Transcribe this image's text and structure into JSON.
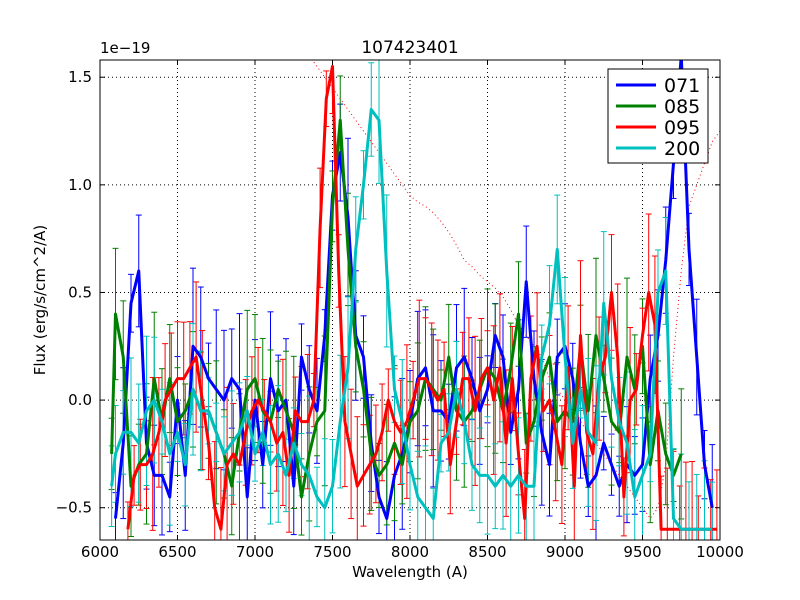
{
  "chart_data": {
    "type": "line",
    "title": "107423401",
    "xlabel": "Wavelength (A)",
    "ylabel": "Flux (erg/s/cm^2/A)",
    "offset_label": "1e−19",
    "xlim": [
      6000,
      10000
    ],
    "ylim": [
      -0.65,
      1.58
    ],
    "xticks": [
      6000,
      6500,
      7000,
      7500,
      8000,
      8500,
      9000,
      9500,
      10000
    ],
    "xtick_labels": [
      "6000",
      "6500",
      "7000",
      "7500",
      "8000",
      "8500",
      "9000",
      "9500",
      "10000"
    ],
    "yticks": [
      -0.5,
      0.0,
      0.5,
      1.0,
      1.5
    ],
    "ytick_labels": [
      "−0.5",
      "0.0",
      "0.5",
      "1.0",
      "1.5"
    ],
    "grid": true,
    "legend_position": "top-right",
    "series": [
      {
        "name": "071",
        "color": "#0000ff",
        "x": [
          6100,
          6150,
          6200,
          6250,
          6300,
          6350,
          6400,
          6450,
          6500,
          6550,
          6600,
          6650,
          6700,
          6750,
          6800,
          6850,
          6900,
          6950,
          7000,
          7050,
          7100,
          7150,
          7200,
          7250,
          7300,
          7350,
          7400,
          7450,
          7500,
          7550,
          7600,
          7650,
          7700,
          7750,
          7800,
          7850,
          7900,
          7950,
          8000,
          8050,
          8100,
          8150,
          8200,
          8250,
          8300,
          8350,
          8400,
          8450,
          8500,
          8550,
          8600,
          8650,
          8700,
          8750,
          8800,
          8850,
          8900,
          8950,
          9000,
          9050,
          9100,
          9150,
          9200,
          9250,
          9300,
          9350,
          9400,
          9450,
          9500,
          9550,
          9600,
          9650,
          9700,
          9750,
          9800,
          9850,
          9900,
          9950
        ],
        "y": [
          -0.55,
          -0.2,
          0.45,
          0.6,
          -0.2,
          -0.35,
          -0.35,
          -0.45,
          0.0,
          -0.35,
          0.25,
          0.2,
          0.1,
          0.05,
          0.0,
          0.1,
          0.05,
          -0.45,
          0.0,
          -0.3,
          0.1,
          -0.05,
          0.0,
          -0.4,
          0.2,
          0.05,
          -0.05,
          0.3,
          0.95,
          1.15,
          0.85,
          0.3,
          0.2,
          -0.2,
          -0.45,
          -0.55,
          -0.35,
          -0.25,
          -0.1,
          0.1,
          0.15,
          -0.05,
          -0.05,
          -0.1,
          0.15,
          0.2,
          0.1,
          -0.05,
          0.05,
          0.3,
          0.2,
          -0.15,
          0.05,
          0.55,
          0.1,
          -0.15,
          -0.3,
          0.2,
          0.25,
          0.1,
          -0.2,
          -0.4,
          -0.35,
          -0.2,
          -0.3,
          -0.4,
          -0.3,
          -0.35,
          -0.3,
          0.1,
          0.3,
          0.65,
          1.1,
          1.6,
          0.7,
          0.2,
          -0.3,
          -0.5
        ]
      },
      {
        "name": "085",
        "color": "#008000",
        "x": [
          6075,
          6100,
          6150,
          6200,
          6250,
          6300,
          6350,
          6400,
          6450,
          6500,
          6550,
          6600,
          6650,
          6700,
          6750,
          6800,
          6850,
          6900,
          6950,
          7000,
          7050,
          7100,
          7150,
          7200,
          7250,
          7300,
          7350,
          7400,
          7450,
          7500,
          7550,
          7600,
          7650,
          7700,
          7750,
          7800,
          7850,
          7900,
          7950,
          8000,
          8050,
          8100,
          8150,
          8200,
          8250,
          8300,
          8350,
          8400,
          8450,
          8500,
          8550,
          8600,
          8650,
          8700,
          8750,
          8800,
          8850,
          8900,
          8950,
          9000,
          9050,
          9100,
          9150,
          9200,
          9250,
          9300,
          9350,
          9400,
          9450,
          9500,
          9550,
          9600,
          9650,
          9700,
          9750
        ],
        "y": [
          -0.25,
          0.4,
          0.2,
          -0.4,
          -0.3,
          -0.25,
          0.1,
          -0.1,
          0.1,
          -0.1,
          -0.05,
          0.05,
          -0.05,
          -0.05,
          -0.15,
          -0.25,
          -0.4,
          -0.15,
          0.05,
          0.1,
          -0.05,
          -0.1,
          0.05,
          -0.05,
          -0.15,
          -0.45,
          -0.25,
          -0.1,
          -0.05,
          0.9,
          1.3,
          0.7,
          0.25,
          0.05,
          -0.25,
          -0.35,
          -0.3,
          -0.2,
          -0.3,
          -0.1,
          -0.05,
          0.1,
          0.05,
          0.0,
          0.2,
          -0.05,
          -0.1,
          -0.05,
          0.05,
          0.15,
          0.1,
          -0.05,
          0.15,
          0.4,
          -0.2,
          -0.1,
          0.1,
          0.2,
          -0.1,
          -0.05,
          -0.1,
          0.25,
          -0.05,
          0.3,
          0.1,
          -0.1,
          -0.15,
          0.2,
          0.05,
          0.25,
          -0.3,
          -0.05,
          -0.25,
          -0.35,
          -0.25
        ]
      },
      {
        "name": "095",
        "color": "#ff0000",
        "x": [
          6180,
          6220,
          6260,
          6300,
          6340,
          6380,
          6420,
          6460,
          6500,
          6540,
          6580,
          6620,
          6660,
          6700,
          6740,
          6780,
          6820,
          6860,
          6900,
          6940,
          6980,
          7020,
          7060,
          7100,
          7140,
          7180,
          7220,
          7260,
          7300,
          7340,
          7380,
          7420,
          7460,
          7500,
          7540,
          7580,
          7620,
          7660,
          7700,
          7740,
          7780,
          7820,
          7860,
          7900,
          7940,
          7980,
          8020,
          8060,
          8100,
          8140,
          8180,
          8220,
          8260,
          8300,
          8340,
          8380,
          8420,
          8460,
          8500,
          8540,
          8580,
          8620,
          8660,
          8700,
          8740,
          8780,
          8820,
          8860,
          8900,
          8940,
          8980,
          9020,
          9060,
          9100,
          9140,
          9180,
          9220,
          9260,
          9300,
          9340,
          9380,
          9420,
          9460,
          9500,
          9540,
          9580,
          9620,
          9660,
          9700,
          9740,
          9780,
          9820,
          9860,
          9900,
          9940,
          9980
        ],
        "y": [
          -0.6,
          -0.35,
          -0.3,
          -0.3,
          -0.25,
          -0.15,
          0.0,
          0.05,
          0.1,
          0.1,
          0.15,
          0.2,
          0.0,
          -0.2,
          -0.5,
          -0.6,
          -0.3,
          -0.25,
          -0.3,
          -0.15,
          -0.05,
          0.0,
          -0.05,
          -0.1,
          -0.2,
          -0.15,
          -0.35,
          -0.05,
          -0.1,
          -0.1,
          0.0,
          0.8,
          1.4,
          1.55,
          0.6,
          -0.1,
          -0.25,
          -0.4,
          -0.35,
          -0.3,
          -0.25,
          -0.15,
          0.0,
          -0.1,
          -0.15,
          -0.1,
          0.0,
          0.1,
          0.1,
          0.05,
          0.0,
          0.05,
          -0.3,
          -0.1,
          0.1,
          0.1,
          -0.05,
          0.1,
          0.15,
          0.0,
          0.15,
          -0.2,
          0.1,
          -0.25,
          -0.55,
          0.1,
          0.25,
          -0.05,
          0.0,
          -0.15,
          -0.3,
          0.15,
          -0.4,
          0.3,
          -0.15,
          -0.25,
          0.1,
          0.2,
          0.5,
          0.2,
          -0.45,
          0.0,
          0.05,
          0.3,
          0.5,
          0.35,
          -0.6,
          -0.6,
          -0.6,
          -0.6,
          -0.6,
          -0.6,
          -0.6,
          -0.6,
          -0.6,
          -0.6
        ],
        "model_x": [
          7350,
          7400,
          7450,
          7500,
          7550,
          7600,
          7650,
          7700,
          7750,
          7800,
          7850,
          7900,
          7950,
          8000,
          8050,
          8100,
          8150,
          8200,
          8250,
          8300,
          8350,
          8400,
          8450,
          8500,
          8550,
          8600,
          8650,
          8700,
          8750,
          8800,
          8850,
          8900,
          8950,
          9000,
          9050,
          9100,
          9150,
          9200,
          9250,
          9300,
          9350,
          9400,
          9450,
          9500,
          9550,
          9600,
          9650,
          9700,
          9750,
          9800,
          9850,
          9900,
          9950,
          10000
        ],
        "model_y": [
          1.6,
          1.55,
          1.5,
          1.45,
          1.4,
          1.35,
          1.3,
          1.25,
          1.2,
          1.15,
          1.1,
          1.05,
          1.0,
          0.95,
          0.92,
          0.9,
          0.87,
          0.83,
          0.78,
          0.72,
          0.65,
          0.62,
          0.58,
          0.55,
          0.52,
          0.48,
          0.42,
          0.35,
          0.3,
          0.25,
          0.2,
          0.1,
          0.05,
          0.0,
          -0.05,
          -0.1,
          -0.15,
          -0.2,
          -0.25,
          -0.3,
          -0.35,
          -0.4,
          -0.45,
          -0.5,
          -0.55,
          -0.5,
          -0.3,
          0.2,
          0.6,
          0.9,
          1.0,
          1.1,
          1.2,
          1.25
        ]
      },
      {
        "name": "200",
        "color": "#00bfbf",
        "x": [
          6075,
          6100,
          6150,
          6200,
          6250,
          6300,
          6350,
          6400,
          6450,
          6500,
          6550,
          6600,
          6650,
          6700,
          6750,
          6800,
          6850,
          6900,
          6950,
          7000,
          7050,
          7100,
          7150,
          7200,
          7250,
          7300,
          7350,
          7400,
          7450,
          7500,
          7550,
          7600,
          7650,
          7700,
          7750,
          7800,
          7850,
          7900,
          7950,
          8000,
          8050,
          8100,
          8150,
          8200,
          8250,
          8300,
          8350,
          8400,
          8450,
          8500,
          8550,
          8600,
          8650,
          8700,
          8750,
          8800,
          8850,
          8900,
          8950,
          9000,
          9050,
          9100,
          9150,
          9200,
          9250,
          9300,
          9350,
          9400,
          9450,
          9500,
          9550,
          9600,
          9650,
          9700,
          9750,
          9800,
          9850,
          9900,
          9950
        ],
        "y": [
          -0.4,
          -0.25,
          -0.15,
          -0.15,
          -0.2,
          -0.05,
          0.0,
          -0.1,
          -0.25,
          -0.15,
          -0.3,
          0.05,
          -0.05,
          -0.05,
          -0.15,
          -0.25,
          -0.2,
          -0.15,
          -0.05,
          -0.25,
          -0.15,
          -0.3,
          -0.25,
          -0.35,
          -0.2,
          -0.3,
          -0.35,
          -0.45,
          -0.5,
          -0.4,
          -0.1,
          0.15,
          0.7,
          1.0,
          1.35,
          1.3,
          0.6,
          0.05,
          -0.1,
          -0.3,
          -0.45,
          -0.5,
          -0.55,
          -0.2,
          -0.15,
          0.05,
          -0.1,
          -0.3,
          -0.35,
          -0.35,
          -0.4,
          -0.35,
          -0.4,
          -0.35,
          -0.4,
          -0.4,
          0.2,
          0.35,
          0.7,
          0.2,
          -0.2,
          0.05,
          -0.15,
          -0.2,
          0.45,
          0.1,
          -0.1,
          -0.2,
          -0.45,
          -0.35,
          -0.25,
          0.5,
          0.6,
          -0.55,
          -0.6,
          -0.6,
          -0.6,
          -0.6,
          -0.6
        ]
      }
    ]
  }
}
